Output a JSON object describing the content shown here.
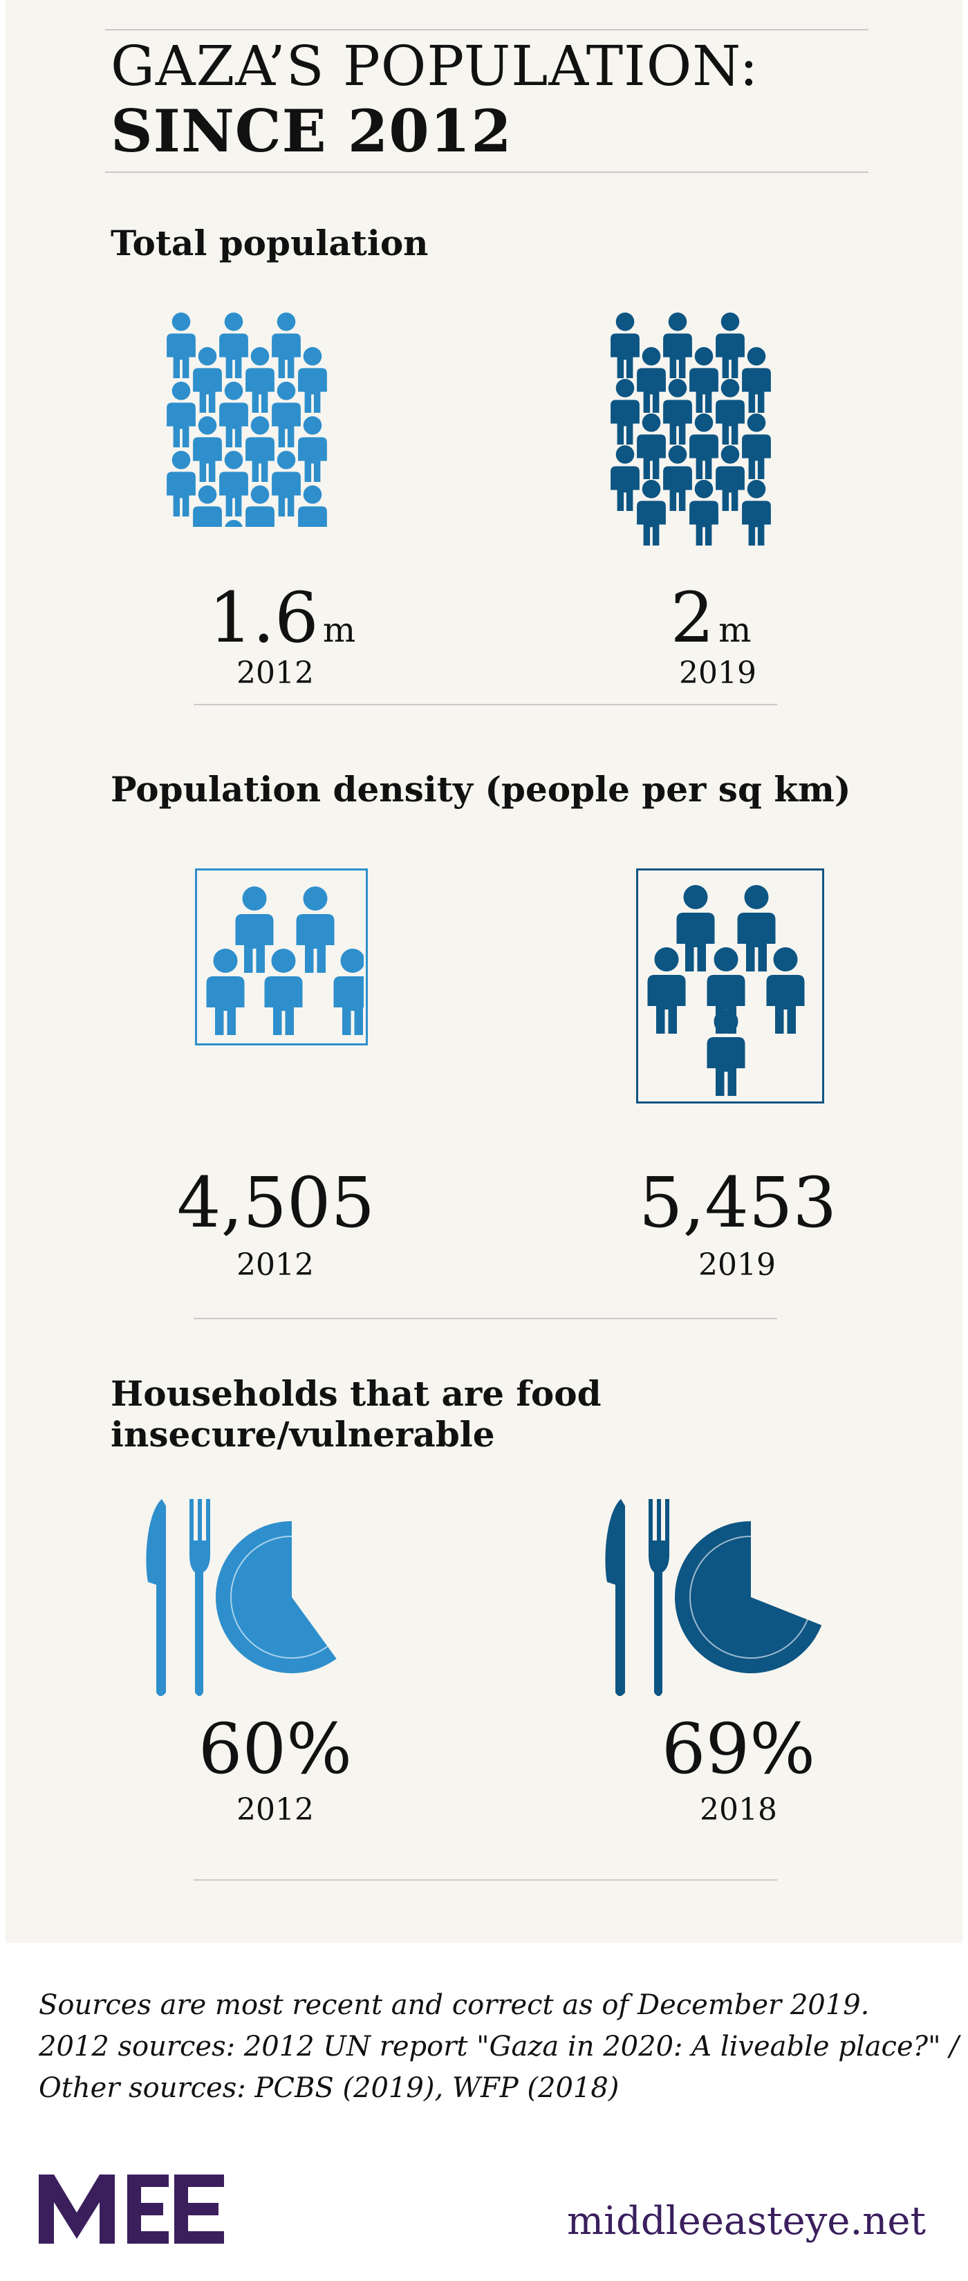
{
  "title": {
    "line1": "GAZA’S POPULATION:",
    "line2": "SINCE 2012"
  },
  "colors": {
    "light_blue": "#2e8fcc",
    "dark_blue": "#0d5583",
    "panel": "#f7f5f0",
    "logo_purple": "#3b1f5d"
  },
  "sections": {
    "total_population": {
      "heading": "Total population",
      "left": {
        "value": "1.6",
        "unit": "m",
        "year": "2012",
        "icon": "people-crowd-icon"
      },
      "right": {
        "value": "2",
        "unit": "m",
        "year": "2019",
        "icon": "people-crowd-icon"
      }
    },
    "density": {
      "heading": "Population density (people per sq km)",
      "left": {
        "value": "4,505",
        "year": "2012",
        "icon": "people-in-square-icon"
      },
      "right": {
        "value": "5,453",
        "year": "2019",
        "icon": "people-in-square-icon"
      }
    },
    "food": {
      "heading_line1": "Households that are food",
      "heading_line2": "insecure/vulnerable",
      "left": {
        "value": "60%",
        "year": "2012",
        "percent": 60,
        "icon": "knife-fork-plate-icon"
      },
      "right": {
        "value": "69%",
        "year": "2018",
        "percent": 69,
        "icon": "knife-fork-plate-icon"
      }
    }
  },
  "footer": {
    "line1": "Sources are most recent and correct as of December 2019.",
    "line2": "2012 sources: 2012 UN report \"Gaza in 2020: A liveable place?\" /",
    "line3": "Other sources: PCBS (2019), WFP (2018)",
    "site": "middleeasteye.net",
    "logo_text": "MEE"
  }
}
